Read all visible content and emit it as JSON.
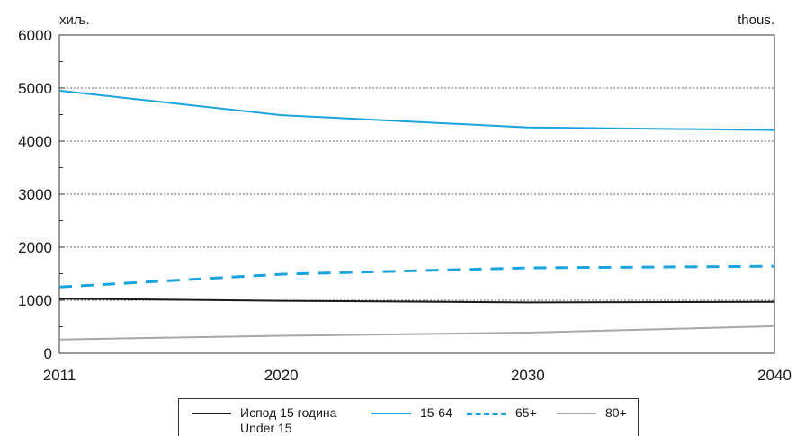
{
  "unit_left": "хиљ.",
  "unit_right": "thous.",
  "chart_data": {
    "type": "line",
    "x": [
      2011,
      2020,
      2030,
      2040
    ],
    "xlim": [
      2011,
      2040
    ],
    "ylim": [
      0,
      6000
    ],
    "yticks": [
      0,
      1000,
      2000,
      3000,
      4000,
      5000,
      6000
    ],
    "xticks": [
      2011,
      2020,
      2030,
      2040
    ],
    "grid": "horizontal dashed",
    "legend_position": "bottom",
    "series": [
      {
        "name": "Испод 15 година",
        "name2": "Under 15",
        "values": [
          1030,
          990,
          960,
          970
        ],
        "color": "#1a1a1a",
        "style": "solid"
      },
      {
        "name": "15-64",
        "values": [
          4950,
          4490,
          4260,
          4210
        ],
        "color": "#1aa3dd",
        "style": "solid"
      },
      {
        "name": "65+",
        "values": [
          1250,
          1490,
          1610,
          1640
        ],
        "color": "#1aa3dd",
        "style": "dashed"
      },
      {
        "name": "80+",
        "values": [
          260,
          330,
          390,
          510
        ],
        "color": "#a8a8a8",
        "style": "solid"
      }
    ]
  }
}
